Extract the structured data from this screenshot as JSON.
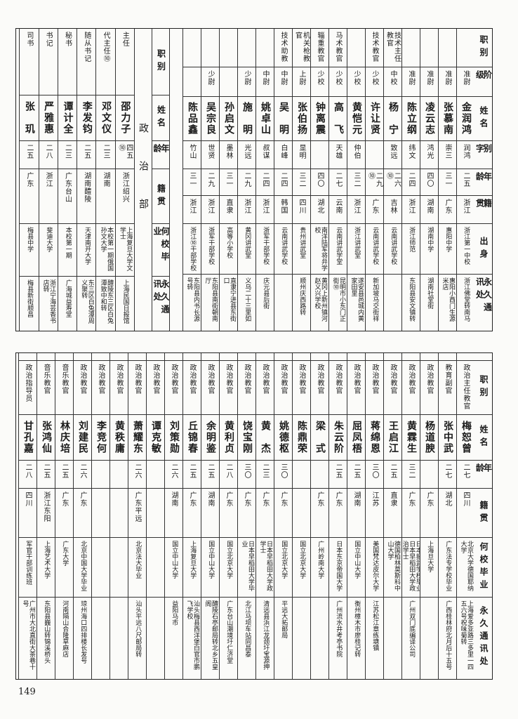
{
  "page_number": "149",
  "top_right": {
    "headers": [
      "职别",
      "阶级",
      "姓名",
      "别字",
      "年龄",
      "籍贯",
      "出身",
      "永久通讯处"
    ],
    "rows": [
      [
        "",
        "准尉",
        "金润鸿",
        "润鸿",
        "二五",
        "浙江",
        "浙江第一中校",
        "浙江佛堂转南马"
      ],
      [
        "",
        "准尉",
        "张慕南",
        "崇三",
        "三一",
        "广东",
        "惠阳中学",
        "惠阳小西门生源米店"
      ],
      [
        "",
        "准尉",
        "凌云志",
        "鸿光",
        "四〇",
        "湖南",
        "湖南中学",
        "湖南社堂街"
      ],
      [
        "",
        "准尉",
        "陈立纲",
        "纬文",
        "二四",
        "浙江",
        "浙江师范",
        "东阳县安文镇转"
      ],
      [
        "技术主任教官",
        "中校",
        "杨　宁",
        "致远",
        "二六⑩",
        "吉林",
        "云南讲武学校",
        ""
      ],
      [
        "技术教官",
        "少校",
        "许让贤",
        "",
        "二九⑩",
        "广东",
        "云南讲武学校",
        "新加坡马交街祥"
      ],
      [
        "",
        "少校",
        "黄恺元",
        "仲伯",
        "三二",
        "浙江",
        "浙江讲武堂",
        "遂安县邑城内黄家田里"
      ],
      [
        "马术教官",
        "少校",
        "高　飞",
        "天雄",
        "二七",
        "云南",
        "云南讲武学堂",
        "昆明市小东门正街⑩"
      ],
      [
        "辎重教官",
        "少校",
        "钟离震",
        "",
        "四〇",
        "湖北",
        "南洋陆军将弁学校",
        "黄冈上新州镇河赵义兴学校"
      ],
      [
        "机关枪教官",
        "上尉",
        "张伯扬",
        "显明",
        "三二",
        "四川",
        "贵州讲武堂",
        "顺州庆西路转"
      ],
      [
        "技术助教",
        "中尉",
        "吴　明",
        "白峰",
        "二四",
        "韩国",
        "云南讲武学校",
        ""
      ],
      [
        "",
        "中尉",
        "姚卓山",
        "叔谋",
        "二四",
        "浙江",
        "浙军干部学校",
        "庆元县后街"
      ],
      [
        "",
        "少尉",
        "施　明",
        "光远",
        "二九",
        "浙江",
        "黄冈讲武堂",
        "义乌二十三里如"
      ],
      [
        "",
        "",
        "孙启文",
        "墨林",
        "三一",
        "直隶",
        "高等小学校",
        "直隶宁进县东街口"
      ],
      [
        "",
        "少尉",
        "吴宗良",
        "世贤",
        "二九",
        "浙江",
        "浙军干部学校",
        "东阳县南街朝南厅"
      ],
      [
        "",
        "",
        "陈品鑫",
        "竹山",
        "三一",
        "浙江",
        "浙江⑩干部学校",
        "东阳县内书长源号转"
      ]
    ]
  },
  "political_dept": {
    "title": "政治部",
    "headers": [
      "职别",
      "姓名",
      "年龄",
      "籍贯",
      "何校毕业",
      "永久通讯处"
    ],
    "rows": [
      [
        "主任",
        "邵力子",
        "四五⑩",
        "浙江绍兴",
        "上海复旦大学文学士",
        "上海民国日报馆"
      ],
      [
        "代主任⑩",
        "邓文仪",
        "二三",
        "湖南",
        "本校第一期俄国孙文大学",
        "醴陵东三区白兔潭致中和转"
      ],
      [
        "随从书记",
        "李发钧",
        "二五",
        "湖南醴陵",
        "天津南开大学",
        "东三区白兔潭周义聚转"
      ],
      [
        "秘书",
        "谭计全",
        "二三",
        "广东台山",
        "本校第一期",
        "广海城益寿堂"
      ],
      [
        "书记",
        "严雅惠",
        "二八",
        "浙江",
        "斐迪大学",
        "浙江宁海芸香书店转"
      ],
      [
        "司书",
        "张　玑",
        "二五",
        "广东",
        "梅县中学",
        "梅县新街顺昌"
      ]
    ]
  },
  "bottom": {
    "headers": [
      "职别",
      "姓名",
      "年龄",
      "籍贯",
      "何校毕业",
      "永久通讯处"
    ],
    "rows": [
      [
        "政治主任教官",
        "梅恕曾",
        "二七",
        "四川",
        "北京大学德国耶纳大学",
        "上海爱多亚路三多里一四五六号祝味菊转"
      ],
      [
        "教育副官",
        "张中武",
        "二七",
        "湖北",
        "广东法专学校毕业",
        "广西桂林府北月后十五号"
      ],
      [
        "政治教官",
        "杨道腴",
        "",
        "广东",
        "上海旦大学",
        ""
      ],
      [
        "政治教官",
        "黄霖生",
        "三二",
        "广东",
        "日本振武学校毕业日本早稻田大学政治学士",
        "广州双门底编译公司"
      ],
      [
        "政治教官",
        "王启江",
        "二五",
        "直隶",
        "德国柏林莫斯科中山大学",
        ""
      ],
      [
        "政治教官",
        "蒋绵恩",
        "三〇",
        "江苏",
        "美国梵达皮尔大学",
        "江苏松江章练塘镇"
      ],
      [
        "政治教官",
        "屈凤梧",
        "二五",
        "湖南",
        "国立中山大学",
        "衡州樟木市廖桂记转"
      ],
      [
        "政治教官",
        "朱云阶",
        "二五",
        "广东",
        "日本东京帝国大学",
        "广州流水井考亭书院"
      ],
      [
        "政治教官",
        "梁　式",
        "",
        "广东",
        "广州岭南大学",
        ""
      ],
      [
        "政治教官",
        "陈鼎荣",
        "",
        "",
        "国立北京大学",
        ""
      ],
      [
        "政治教官",
        "姚德枢",
        "三〇",
        "广东",
        "国立北京大学",
        "平远大拓邮局"
      ],
      [
        "政治教官",
        "黄　杰",
        "二三",
        "广东",
        "日本早稻田大学政学士",
        "清远县浜江龙颈圩宝源押"
      ],
      [
        "政治教官",
        "饶宝刚",
        "三〇",
        "广东",
        "日本早稻田大学毕业",
        "北江马坝车站同昌泰"
      ],
      [
        "政治教官",
        "黄利贞",
        "二八",
        "广东",
        "国立北京大学",
        "广东台山潮境圩仁济堂"
      ],
      [
        "政治教官",
        "余明鉴",
        "二五",
        "湖南",
        "国立中山大学",
        "醴陵石亭邮局转北乡五皇阁"
      ],
      [
        "政治教官",
        "丘锦春",
        "二五",
        "广东",
        "上海复旦大学",
        "汕头梅县西洋堡白官市鹏飞学校"
      ],
      [
        "政治教官",
        "刘策勋",
        "二六",
        "湖南",
        "国立中山大学",
        "益阳马市"
      ],
      [
        "政治教官",
        "谭克敏",
        "",
        "",
        "",
        ""
      ],
      [
        "政治教官",
        "萧耀东",
        "二六",
        "广东平远",
        "北京法大毕业",
        "汕头平远八尺邮局转"
      ],
      [
        "政治教官",
        "黄秩庸",
        "",
        "",
        "",
        ""
      ],
      [
        "政治教官",
        "李竞何",
        "",
        "",
        "",
        ""
      ],
      [
        "政治教官",
        "刘建民",
        "二六",
        "广东",
        "北京中国大学毕业",
        "琼州海口四排楼长发号"
      ],
      [
        "音乐教官",
        "林庆培",
        "二五",
        "广东",
        "广东大学",
        "河南隔山合隆草麻店"
      ],
      [
        "音乐教官",
        "张鸿仙",
        "二五",
        "浙江东阳",
        "上海艺术大学",
        "东阳县巍山转锦溪桥头"
      ],
      [
        "政治指导员",
        "甘孔嘉",
        "二八",
        "四川",
        "军官干部训练班",
        "广州市大北直街大茶巷十号"
      ]
    ]
  }
}
